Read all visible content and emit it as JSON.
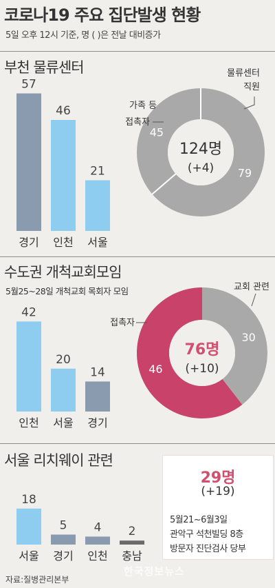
{
  "header": {
    "title": "코로나19 주요 집단발생 현황",
    "subtitle": "5일 오후 12시 기준, 명 ( )은 전날 대비증가"
  },
  "colors": {
    "gray_bar": "#8a9bb0",
    "blue_bar": "#8ecdf0",
    "dark_bar": "#6b6b6b",
    "donut_gray": "#a9a9a9",
    "donut_pink": "#c8426a",
    "accent_text": "#d14f6f"
  },
  "chart_data": [
    {
      "type": "bar",
      "title": "부천 물류센터",
      "categories": [
        "경기",
        "인천",
        "서울"
      ],
      "values": [
        57,
        46,
        21
      ],
      "ylim": [
        0,
        60
      ]
    },
    {
      "type": "pie",
      "title": "부천 물류센터",
      "labels": [
        "물류센터 직원",
        "가족 등 접촉자"
      ],
      "values": [
        79,
        45
      ],
      "total_label": "124명",
      "change_label": "(+4)"
    },
    {
      "type": "bar",
      "title": "수도권 개척교회모임",
      "subtitle": "5월25~28일 개척교회 목회자 모임",
      "categories": [
        "인천",
        "서울",
        "경기"
      ],
      "values": [
        42,
        20,
        14
      ],
      "ylim": [
        0,
        45
      ]
    },
    {
      "type": "pie",
      "title": "수도권 개척교회모임",
      "labels": [
        "교회 관련",
        "접촉자"
      ],
      "values": [
        30,
        46
      ],
      "total_label": "76명",
      "change_label": "(+10)"
    },
    {
      "type": "bar",
      "title": "서울 리치웨이 관련",
      "categories": [
        "서울",
        "경기",
        "인천",
        "충남"
      ],
      "values": [
        18,
        5,
        4,
        2
      ],
      "ylim": [
        0,
        20
      ]
    }
  ],
  "card": {
    "total": "29명",
    "change": "(+19)",
    "lines": [
      "5월21~6월3일",
      "관악구 석천빌딩 8층",
      "방문자 진단검사 당부"
    ]
  },
  "footer": {
    "source": "자료:질병관리본부",
    "watermark": "한국정보뉴스"
  }
}
